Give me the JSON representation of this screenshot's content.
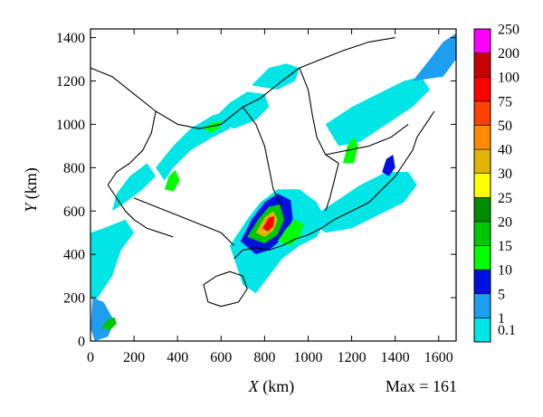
{
  "chart_data": {
    "type": "heatmap",
    "title": "",
    "xlabel": {
      "var": "X",
      "unit": " (km)"
    },
    "ylabel": {
      "var": "Y",
      "unit": " (km)"
    },
    "xlim": [
      0,
      1680
    ],
    "ylim": [
      0,
      1440
    ],
    "x_ticks": [
      0,
      200,
      400,
      600,
      800,
      1000,
      1200,
      1400,
      1600
    ],
    "y_ticks": [
      0,
      200,
      400,
      600,
      800,
      1000,
      1200,
      1400
    ],
    "max_annotation": "Max = 161",
    "max_value": 161,
    "grid": false,
    "legend": "right colorbar",
    "colorbar": {
      "levels": [
        "0.1",
        "1",
        "5",
        "10",
        "15",
        "20",
        "25",
        "30",
        "40",
        "50",
        "75",
        "100",
        "200",
        "250"
      ],
      "colors": [
        "#00e5e5",
        "#1e9ef0",
        "#0010e0",
        "#00ff00",
        "#00c800",
        "#008c00",
        "#ffff00",
        "#e0b400",
        "#ff8c00",
        "#ff4000",
        "#ff0000",
        "#c80000",
        "#ff00ff"
      ]
    },
    "regions": [
      {
        "name": "west-edge",
        "points": [
          [
            0,
            500
          ],
          [
            60,
            520
          ],
          [
            160,
            560
          ],
          [
            200,
            500
          ],
          [
            140,
            420
          ],
          [
            100,
            300
          ],
          [
            20,
            180
          ],
          [
            0,
            200
          ]
        ],
        "level": 0
      },
      {
        "name": "sw-corner",
        "points": [
          [
            10,
            200
          ],
          [
            60,
            180
          ],
          [
            110,
            90
          ],
          [
            80,
            20
          ],
          [
            20,
            0
          ],
          [
            0,
            60
          ]
        ],
        "level": 1
      },
      {
        "name": "nw-west-band",
        "points": [
          [
            100,
            600
          ],
          [
            160,
            640
          ],
          [
            240,
            700
          ],
          [
            300,
            760
          ],
          [
            260,
            820
          ],
          [
            180,
            760
          ],
          [
            120,
            680
          ]
        ],
        "level": 0
      },
      {
        "name": "central-band",
        "points": [
          [
            300,
            800
          ],
          [
            380,
            900
          ],
          [
            460,
            980
          ],
          [
            560,
            1040
          ],
          [
            620,
            1060
          ],
          [
            660,
            1040
          ],
          [
            640,
            980
          ],
          [
            560,
            940
          ],
          [
            460,
            880
          ],
          [
            380,
            800
          ],
          [
            340,
            740
          ]
        ],
        "level": 0
      },
      {
        "name": "north-central",
        "points": [
          [
            560,
            1020
          ],
          [
            640,
            1100
          ],
          [
            720,
            1150
          ],
          [
            800,
            1140
          ],
          [
            820,
            1080
          ],
          [
            760,
            1020
          ],
          [
            660,
            980
          ]
        ],
        "level": 0
      },
      {
        "name": "north-band",
        "points": [
          [
            740,
            1180
          ],
          [
            820,
            1260
          ],
          [
            900,
            1280
          ],
          [
            960,
            1260
          ],
          [
            940,
            1200
          ],
          [
            860,
            1160
          ]
        ],
        "level": 0
      },
      {
        "name": "east-band",
        "points": [
          [
            1080,
            1000
          ],
          [
            1200,
            1080
          ],
          [
            1320,
            1140
          ],
          [
            1440,
            1200
          ],
          [
            1520,
            1220
          ],
          [
            1560,
            1160
          ],
          [
            1480,
            1080
          ],
          [
            1360,
            1000
          ],
          [
            1240,
            920
          ],
          [
            1140,
            900
          ]
        ],
        "level": 0
      },
      {
        "name": "northeast-strip",
        "points": [
          [
            1480,
            1200
          ],
          [
            1560,
            1300
          ],
          [
            1620,
            1380
          ],
          [
            1680,
            1420
          ],
          [
            1680,
            1300
          ],
          [
            1620,
            1220
          ]
        ],
        "level": 1
      },
      {
        "name": "south-central-area",
        "points": [
          [
            640,
            440
          ],
          [
            720,
            560
          ],
          [
            780,
            640
          ],
          [
            860,
            700
          ],
          [
            960,
            700
          ],
          [
            1040,
            640
          ],
          [
            1080,
            560
          ],
          [
            1040,
            480
          ],
          [
            960,
            440
          ],
          [
            880,
            380
          ],
          [
            820,
            300
          ],
          [
            760,
            220
          ],
          [
            700,
            260
          ]
        ],
        "level": 0
      },
      {
        "name": "east-coast-area",
        "points": [
          [
            1000,
            560
          ],
          [
            1120,
            640
          ],
          [
            1240,
            720
          ],
          [
            1360,
            780
          ],
          [
            1460,
            780
          ],
          [
            1500,
            720
          ],
          [
            1440,
            640
          ],
          [
            1320,
            580
          ],
          [
            1200,
            520
          ],
          [
            1080,
            500
          ]
        ],
        "level": 0
      },
      {
        "name": "hotspot-outer",
        "points": [
          [
            690,
            460
          ],
          [
            740,
            560
          ],
          [
            800,
            640
          ],
          [
            860,
            680
          ],
          [
            920,
            650
          ],
          [
            930,
            560
          ],
          [
            880,
            470
          ],
          [
            820,
            420
          ],
          [
            760,
            400
          ]
        ],
        "level": 2
      },
      {
        "name": "hotspot-middle",
        "points": [
          [
            720,
            480
          ],
          [
            770,
            560
          ],
          [
            820,
            620
          ],
          [
            870,
            630
          ],
          [
            890,
            560
          ],
          [
            860,
            490
          ],
          [
            800,
            450
          ]
        ],
        "level": 4
      },
      {
        "name": "hotspot-inner",
        "points": [
          [
            760,
            500
          ],
          [
            800,
            570
          ],
          [
            840,
            600
          ],
          [
            860,
            560
          ],
          [
            840,
            510
          ],
          [
            800,
            480
          ]
        ],
        "level": 7
      },
      {
        "name": "hotspot-core",
        "points": [
          [
            790,
            520
          ],
          [
            820,
            570
          ],
          [
            845,
            575
          ],
          [
            840,
            530
          ],
          [
            815,
            505
          ]
        ],
        "level": 10
      },
      {
        "name": "coast-streak",
        "points": [
          [
            860,
            460
          ],
          [
            900,
            520
          ],
          [
            940,
            560
          ],
          [
            980,
            540
          ],
          [
            960,
            480
          ],
          [
            920,
            440
          ]
        ],
        "level": 3
      },
      {
        "name": "east-cell-a",
        "points": [
          [
            1160,
            820
          ],
          [
            1180,
            900
          ],
          [
            1210,
            940
          ],
          [
            1230,
            900
          ],
          [
            1210,
            820
          ]
        ],
        "level": 3
      },
      {
        "name": "east-cell-b",
        "points": [
          [
            1340,
            780
          ],
          [
            1360,
            840
          ],
          [
            1390,
            860
          ],
          [
            1400,
            800
          ],
          [
            1370,
            760
          ]
        ],
        "level": 2
      },
      {
        "name": "west-cell",
        "points": [
          [
            340,
            700
          ],
          [
            360,
            760
          ],
          [
            390,
            790
          ],
          [
            410,
            740
          ],
          [
            380,
            690
          ]
        ],
        "level": 3
      },
      {
        "name": "sw-cell",
        "points": [
          [
            50,
            60
          ],
          [
            80,
            100
          ],
          [
            110,
            110
          ],
          [
            120,
            80
          ],
          [
            90,
            50
          ]
        ],
        "level": 4
      },
      {
        "name": "north-cell",
        "points": [
          [
            520,
            980
          ],
          [
            560,
            1010
          ],
          [
            600,
            1010
          ],
          [
            590,
            980
          ],
          [
            550,
            960
          ]
        ],
        "level": 3
      }
    ],
    "boundaries": [
      {
        "name": "coastline",
        "points": [
          [
            660,
            380
          ],
          [
            700,
            420
          ],
          [
            760,
            430
          ],
          [
            820,
            420
          ],
          [
            880,
            440
          ],
          [
            940,
            470
          ],
          [
            1000,
            490
          ],
          [
            1060,
            520
          ],
          [
            1120,
            560
          ],
          [
            1200,
            600
          ],
          [
            1280,
            640
          ],
          [
            1340,
            700
          ],
          [
            1400,
            760
          ],
          [
            1440,
            820
          ],
          [
            1480,
            880
          ],
          [
            1500,
            940
          ],
          [
            1540,
            1000
          ],
          [
            1580,
            1060
          ]
        ]
      },
      {
        "name": "island",
        "points": [
          [
            540,
            180
          ],
          [
            600,
            160
          ],
          [
            680,
            180
          ],
          [
            720,
            240
          ],
          [
            700,
            300
          ],
          [
            640,
            320
          ],
          [
            580,
            300
          ],
          [
            520,
            260
          ]
        ],
        "closed": true
      },
      {
        "name": "border-a",
        "points": [
          [
            0,
            1260
          ],
          [
            100,
            1220
          ],
          [
            200,
            1140
          ],
          [
            300,
            1060
          ],
          [
            400,
            1000
          ],
          [
            500,
            980
          ],
          [
            600,
            1000
          ],
          [
            700,
            1080
          ],
          [
            780,
            1120
          ]
        ]
      },
      {
        "name": "border-b",
        "points": [
          [
            300,
            1060
          ],
          [
            280,
            960
          ],
          [
            240,
            880
          ],
          [
            180,
            820
          ],
          [
            120,
            780
          ],
          [
            80,
            720
          ]
        ]
      },
      {
        "name": "border-c",
        "points": [
          [
            700,
            1080
          ],
          [
            760,
            1000
          ],
          [
            800,
            900
          ],
          [
            820,
            800
          ],
          [
            840,
            700
          ],
          [
            880,
            620
          ]
        ]
      },
      {
        "name": "border-d",
        "points": [
          [
            780,
            1120
          ],
          [
            880,
            1200
          ],
          [
            960,
            1260
          ],
          [
            1060,
            1300
          ],
          [
            1160,
            1340
          ],
          [
            1280,
            1380
          ],
          [
            1400,
            1400
          ]
        ]
      },
      {
        "name": "border-e",
        "points": [
          [
            960,
            1260
          ],
          [
            1000,
            1160
          ],
          [
            1020,
            1040
          ],
          [
            1040,
            940
          ],
          [
            1080,
            860
          ],
          [
            1140,
            820
          ]
        ]
      },
      {
        "name": "border-f",
        "points": [
          [
            1080,
            860
          ],
          [
            1180,
            880
          ],
          [
            1280,
            900
          ],
          [
            1380,
            940
          ],
          [
            1460,
            1000
          ]
        ]
      },
      {
        "name": "border-g",
        "points": [
          [
            200,
            660
          ],
          [
            300,
            620
          ],
          [
            400,
            580
          ],
          [
            500,
            540
          ],
          [
            600,
            500
          ],
          [
            660,
            440
          ]
        ]
      },
      {
        "name": "border-h",
        "points": [
          [
            80,
            720
          ],
          [
            120,
            660
          ],
          [
            160,
            600
          ],
          [
            200,
            560
          ],
          [
            260,
            520
          ],
          [
            320,
            500
          ],
          [
            380,
            480
          ]
        ]
      },
      {
        "name": "border-i",
        "points": [
          [
            1140,
            820
          ],
          [
            1120,
            740
          ],
          [
            1100,
            660
          ],
          [
            1080,
            600
          ]
        ]
      }
    ]
  }
}
